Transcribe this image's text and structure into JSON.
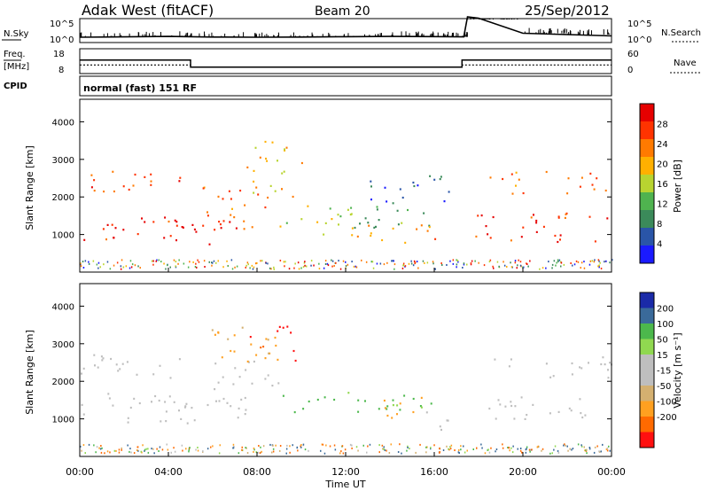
{
  "header": {
    "station": "Adak West (fitACF)",
    "beam": "Beam 20",
    "date": "25/Sep/2012"
  },
  "strip_labels": {
    "nsky": "N.Sky",
    "nsearch": "N.Search",
    "freq_line1": "Freq.",
    "freq_line2": "[MHz]",
    "nave": "Nave",
    "cpid": "CPID",
    "cpid_value": "normal (fast) 151 RF",
    "noise_ticks": [
      "10^5",
      "10^0"
    ],
    "freq_ticks": [
      "18",
      "8"
    ],
    "nave_ticks": [
      "60",
      "0"
    ]
  },
  "colors": {
    "power_scale": [
      "#1a1aff",
      "#2a55a8",
      "#3b8a5a",
      "#4fb34f",
      "#b8d430",
      "#ffb000",
      "#ff7a00",
      "#ff3300",
      "#e60000"
    ],
    "velocity_scale": [
      "#ff1010",
      "#ff6a00",
      "#ffa020",
      "#d4b070",
      "#bebebe",
      "#bebebe",
      "#90d850",
      "#4cb84c",
      "#3a6a9a",
      "#1a2aa8"
    ],
    "ground_scatter": "#bebebe"
  },
  "chart_data": [
    {
      "type": "line",
      "panel": "noise",
      "x": [
        "00:00",
        "02:00",
        "04:00",
        "06:00",
        "08:00",
        "10:00",
        "12:00",
        "14:00",
        "16:00",
        "17:20",
        "17:30",
        "18:00",
        "20:00",
        "22:00",
        "24:00"
      ],
      "series": [
        {
          "name": "N.Sky",
          "values": [
            10,
            12,
            15,
            11,
            10,
            11,
            13,
            15,
            14,
            12,
            400000,
            200000,
            80,
            40,
            20
          ]
        }
      ],
      "ylim": [
        1,
        100000
      ],
      "yscale": "log"
    },
    {
      "type": "line",
      "panel": "frequency",
      "x": [
        "00:00",
        "05:00",
        "05:00",
        "17:15",
        "17:15",
        "24:00"
      ],
      "series": [
        {
          "name": "Freq.",
          "values": [
            13.5,
            13.5,
            10.4,
            10.4,
            13.5,
            13.5
          ]
        },
        {
          "name": "Nave",
          "values": [
            20,
            20,
            14,
            14,
            20,
            20
          ]
        }
      ],
      "ylim": [
        8,
        18
      ],
      "y2lim": [
        0,
        60
      ]
    },
    {
      "type": "heatmap",
      "panel": "power",
      "xlabel": "",
      "ylabel": "Slant Range [km]",
      "xlim": [
        "00:00",
        "24:00"
      ],
      "ylim": [
        0,
        4600
      ],
      "yticks": [
        1000,
        2000,
        3000,
        4000
      ],
      "colorbar": {
        "label": "Power [dB]",
        "ticks": [
          4,
          8,
          12,
          16,
          20,
          24,
          28
        ]
      },
      "regions": [
        {
          "t0": 0.0,
          "t1": 5.0,
          "r0": 750,
          "r1": 1500,
          "value": 28
        },
        {
          "t0": 0.0,
          "t1": 5.0,
          "r0": 2100,
          "r1": 2700,
          "value": 26
        },
        {
          "t0": 4.5,
          "t1": 7.5,
          "r0": 750,
          "r1": 1400,
          "value": 29
        },
        {
          "t0": 5.5,
          "t1": 8.5,
          "r0": 1100,
          "r1": 2500,
          "value": 24
        },
        {
          "t0": 7.5,
          "t1": 10.0,
          "r0": 2000,
          "r1": 3500,
          "value": 20
        },
        {
          "t0": 9.0,
          "t1": 12.5,
          "r0": 1000,
          "r1": 1800,
          "value": 16
        },
        {
          "t0": 11.5,
          "t1": 16.0,
          "r0": 1200,
          "r1": 1900,
          "value": 11
        },
        {
          "t0": 12.5,
          "t1": 16.5,
          "r0": 800,
          "r1": 1300,
          "value": 20
        },
        {
          "t0": 16.0,
          "t1": 17.2,
          "r0": 800,
          "r1": 1000,
          "value": 27
        },
        {
          "t0": 13.0,
          "t1": 17.0,
          "r0": 1900,
          "r1": 2600,
          "value": 6
        },
        {
          "t0": 17.8,
          "t1": 24.0,
          "r0": 800,
          "r1": 1600,
          "value": 28
        },
        {
          "t0": 18.5,
          "t1": 24.0,
          "r0": 2100,
          "r1": 2700,
          "value": 24
        }
      ]
    },
    {
      "type": "heatmap",
      "panel": "velocity",
      "xlabel": "Time UT",
      "ylabel": "Slant Range [km]",
      "xlim": [
        "00:00",
        "24:00"
      ],
      "ylim": [
        0,
        4600
      ],
      "xticks": [
        "00:00",
        "04:00",
        "08:00",
        "12:00",
        "16:00",
        "20:00",
        "00:00"
      ],
      "yticks": [
        1000,
        2000,
        3000,
        4000
      ],
      "colorbar": {
        "label": "Velocity [m s⁻¹]",
        "ticks": [
          200,
          100,
          50,
          15,
          -15,
          -50,
          -100,
          -200
        ]
      },
      "regions": [
        {
          "t0": 0.0,
          "t1": 5.0,
          "r0": 900,
          "r1": 1700,
          "value": 0
        },
        {
          "t0": 0.0,
          "t1": 5.0,
          "r0": 2100,
          "r1": 2800,
          "value": 0
        },
        {
          "t0": 4.5,
          "t1": 7.5,
          "r0": 800,
          "r1": 1500,
          "value": 0
        },
        {
          "t0": 6.0,
          "t1": 9.0,
          "r0": 1400,
          "r1": 2600,
          "value": 0
        },
        {
          "t0": 5.5,
          "t1": 9.0,
          "r0": 2500,
          "r1": 3600,
          "value": -60
        },
        {
          "t0": 7.5,
          "t1": 9.5,
          "r0": 2800,
          "r1": 3500,
          "value": -200
        },
        {
          "t0": 9.5,
          "t1": 10.5,
          "r0": 2500,
          "r1": 2900,
          "value": -200
        },
        {
          "t0": 9.0,
          "t1": 16.0,
          "r0": 1200,
          "r1": 1800,
          "value": 60
        },
        {
          "t0": 13.0,
          "t1": 15.5,
          "r0": 1000,
          "r1": 1600,
          "value": -60
        },
        {
          "t0": 15.5,
          "t1": 17.2,
          "r0": 700,
          "r1": 1200,
          "value": 0
        },
        {
          "t0": 17.8,
          "t1": 24.0,
          "r0": 1000,
          "r1": 1600,
          "value": 0
        },
        {
          "t0": 18.5,
          "t1": 24.0,
          "r0": 2100,
          "r1": 2700,
          "value": 0
        }
      ]
    }
  ]
}
